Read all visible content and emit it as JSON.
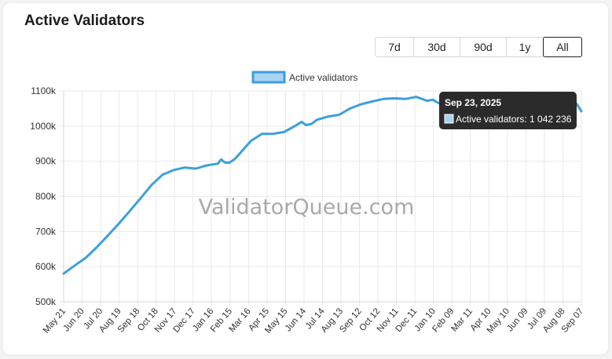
{
  "card": {
    "title": "Active Validators"
  },
  "range_buttons": [
    {
      "label": "7d",
      "active": false
    },
    {
      "label": "30d",
      "active": false
    },
    {
      "label": "90d",
      "active": false
    },
    {
      "label": "1y",
      "active": false
    },
    {
      "label": "All",
      "active": true
    }
  ],
  "watermark": "ValidatorQueue.com",
  "tooltip": {
    "title": "Sep 23, 2025",
    "label": "Active validators: 1 042 236"
  },
  "colors": {
    "line": "#3d9fdb",
    "legend_fill": "#a9d3f2",
    "grid": "#e9e9e9",
    "tooltip_bg": "#2b2b2b"
  },
  "chart_data": {
    "type": "line",
    "legend_placement": "top-center",
    "grid": true,
    "ylim": [
      500000,
      1100000
    ],
    "y_ticks": [
      500000,
      600000,
      700000,
      800000,
      900000,
      1000000,
      1100000
    ],
    "y_tick_labels": [
      "500k",
      "600k",
      "700k",
      "800k",
      "900k",
      "1000k",
      "1100k"
    ],
    "x_tick_labels": [
      "May 21",
      "Jun 20",
      "Jul 20",
      "Aug 19",
      "Sep 18",
      "Oct 18",
      "Nov 17",
      "Dec 17",
      "Jan 16",
      "Feb 15",
      "Mar 16",
      "Apr 15",
      "May 15",
      "Jun 14",
      "Jul 14",
      "Aug 13",
      "Sep 12",
      "Oct 12",
      "Nov 11",
      "Dec 11",
      "Jan 10",
      "Feb 09",
      "Mar 11",
      "Apr 10",
      "May 10",
      "Jun 09",
      "Jul 09",
      "Aug 08",
      "Sep 07"
    ],
    "series": [
      {
        "name": "Active validators",
        "points": [
          [
            0,
            580000
          ],
          [
            1,
            603000
          ],
          [
            2,
            625000
          ],
          [
            3,
            655000
          ],
          [
            4,
            688000
          ],
          [
            5,
            722000
          ],
          [
            6,
            758000
          ],
          [
            7,
            795000
          ],
          [
            8,
            833000
          ],
          [
            9,
            862000
          ],
          [
            10,
            875000
          ],
          [
            11,
            882000
          ],
          [
            12,
            879000
          ],
          [
            13,
            888000
          ],
          [
            14,
            893000
          ],
          [
            14.3,
            905000
          ],
          [
            14.6,
            897000
          ],
          [
            15,
            895000
          ],
          [
            15.5,
            905000
          ],
          [
            16,
            922000
          ],
          [
            17,
            958000
          ],
          [
            18,
            978000
          ],
          [
            19,
            978000
          ],
          [
            20,
            983000
          ],
          [
            21,
            1000000
          ],
          [
            21.6,
            1012000
          ],
          [
            22,
            1003000
          ],
          [
            22.5,
            1006000
          ],
          [
            23,
            1018000
          ],
          [
            24,
            1027000
          ],
          [
            25,
            1032000
          ],
          [
            26,
            1050000
          ],
          [
            27,
            1062000
          ],
          [
            28,
            1070000
          ],
          [
            29,
            1077000
          ],
          [
            30,
            1079000
          ],
          [
            31,
            1077000
          ],
          [
            32,
            1083000
          ],
          [
            33,
            1072000
          ],
          [
            33.5,
            1075000
          ],
          [
            34,
            1066000
          ],
          [
            35,
            1058000
          ],
          [
            36,
            1063000
          ],
          [
            37,
            1056000
          ],
          [
            38,
            1057000
          ],
          [
            39,
            1062000
          ],
          [
            40,
            1056000
          ],
          [
            41,
            1066000
          ],
          [
            42,
            1075000
          ],
          [
            43,
            1090000
          ],
          [
            44,
            1092000
          ],
          [
            45,
            1087000
          ],
          [
            46,
            1080000
          ],
          [
            46.6,
            1062000
          ],
          [
            47,
            1042236
          ]
        ]
      }
    ]
  }
}
